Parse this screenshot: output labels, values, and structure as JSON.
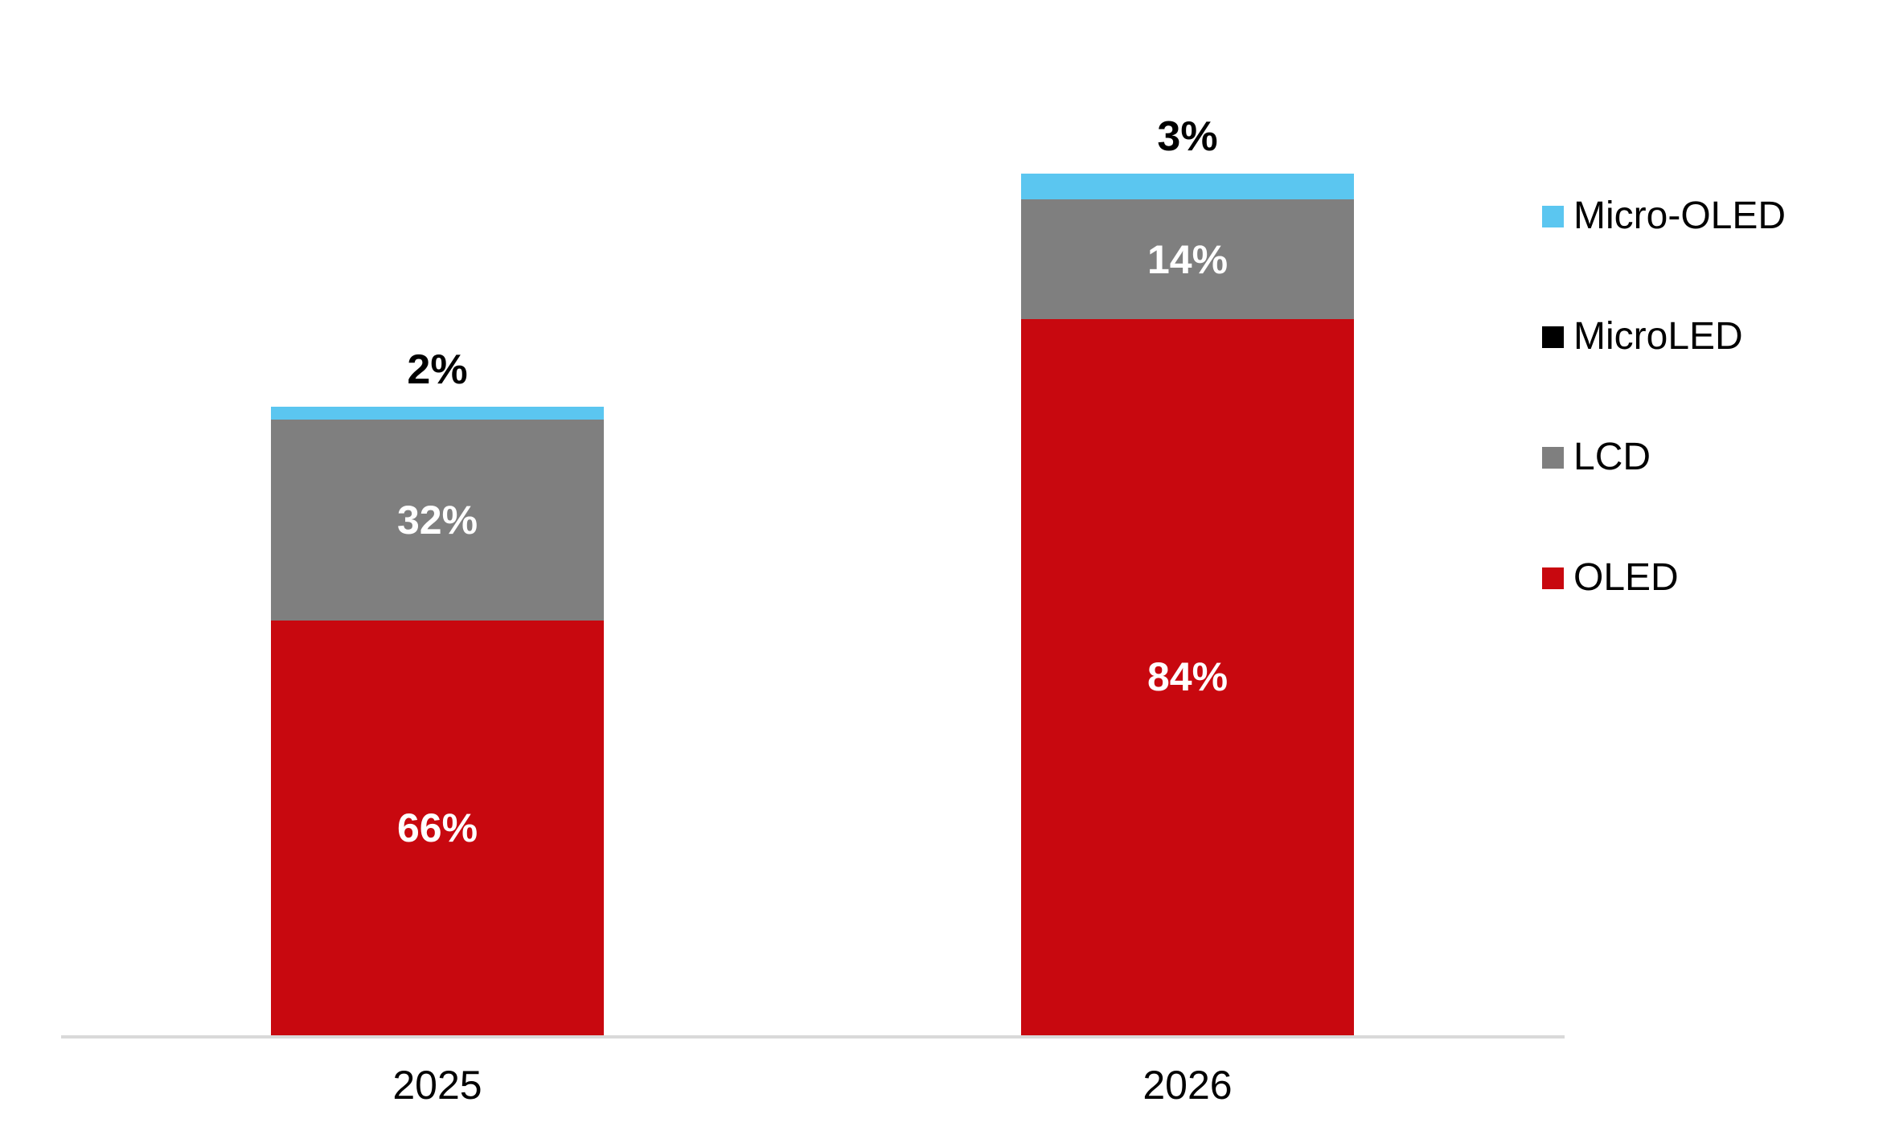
{
  "chart_data": {
    "type": "bar",
    "stacked": true,
    "title": "",
    "xlabel": "",
    "ylabel": "",
    "grid": false,
    "legend_position": "right",
    "categories": [
      "2025",
      "2026"
    ],
    "series": [
      {
        "name": "OLED",
        "color": "#C8080F",
        "values": [
          66,
          84
        ],
        "labels": [
          "66%",
          "84%"
        ]
      },
      {
        "name": "LCD",
        "color": "#7F7F7F",
        "values": [
          32,
          14
        ],
        "labels": [
          "32%",
          "14%"
        ]
      },
      {
        "name": "MicroLED",
        "color": "#000000",
        "values": [
          0,
          0
        ],
        "labels": [
          "",
          ""
        ]
      },
      {
        "name": "Micro-OLED",
        "color": "#5BC6F0",
        "values": [
          2,
          3
        ],
        "labels": [
          "",
          ""
        ]
      }
    ],
    "top_labels": [
      "2%",
      "3%"
    ],
    "bar_total_relative_heights": [
      1.0,
      1.37
    ],
    "legend": [
      {
        "label": "Micro-OLED",
        "color": "#5BC6F0"
      },
      {
        "label": "MicroLED",
        "color": "#000000"
      },
      {
        "label": "LCD",
        "color": "#7F7F7F"
      },
      {
        "label": "OLED",
        "color": "#C8080F"
      }
    ],
    "axis_color": "#D9D9D9",
    "inner_label_color": "#FFFFFF"
  }
}
